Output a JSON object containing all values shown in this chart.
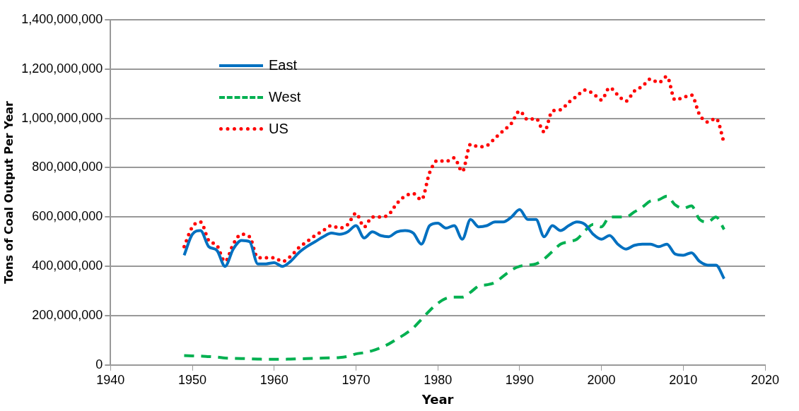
{
  "chart_data": {
    "type": "line",
    "xlabel": "Year",
    "ylabel": "Tons of Coal Output Per Year",
    "x": [
      1949,
      1950,
      1951,
      1952,
      1953,
      1954,
      1955,
      1956,
      1957,
      1958,
      1959,
      1960,
      1961,
      1962,
      1963,
      1964,
      1965,
      1966,
      1967,
      1968,
      1969,
      1970,
      1971,
      1972,
      1973,
      1974,
      1975,
      1976,
      1977,
      1978,
      1979,
      1980,
      1981,
      1982,
      1983,
      1984,
      1985,
      1986,
      1987,
      1988,
      1989,
      1990,
      1991,
      1992,
      1993,
      1994,
      1995,
      1996,
      1997,
      1998,
      1999,
      2000,
      2001,
      2002,
      2003,
      2004,
      2005,
      2006,
      2007,
      2008,
      2009,
      2010,
      2011,
      2012,
      2013,
      2014,
      2015
    ],
    "series": [
      {
        "name": "East",
        "color": "#0070c0",
        "line_style": "solid",
        "values": [
          445000000,
          530000000,
          545000000,
          480000000,
          465000000,
          400000000,
          470000000,
          505000000,
          500000000,
          410000000,
          410000000,
          415000000,
          400000000,
          420000000,
          455000000,
          480000000,
          500000000,
          520000000,
          535000000,
          530000000,
          540000000,
          565000000,
          515000000,
          540000000,
          525000000,
          520000000,
          540000000,
          545000000,
          535000000,
          490000000,
          565000000,
          575000000,
          555000000,
          565000000,
          510000000,
          590000000,
          560000000,
          565000000,
          580000000,
          580000000,
          600000000,
          630000000,
          590000000,
          590000000,
          520000000,
          565000000,
          545000000,
          565000000,
          580000000,
          570000000,
          530000000,
          510000000,
          525000000,
          490000000,
          470000000,
          485000000,
          490000000,
          490000000,
          480000000,
          490000000,
          450000000,
          445000000,
          455000000,
          420000000,
          405000000,
          405000000,
          350000000
        ]
      },
      {
        "name": "West",
        "color": "#00b050",
        "line_style": "dashed",
        "values": [
          38000000,
          37000000,
          36000000,
          34000000,
          32000000,
          28000000,
          27000000,
          26000000,
          25000000,
          24000000,
          23000000,
          23000000,
          23000000,
          24000000,
          25000000,
          26000000,
          27000000,
          28000000,
          29000000,
          30000000,
          35000000,
          45000000,
          50000000,
          58000000,
          70000000,
          85000000,
          105000000,
          125000000,
          150000000,
          185000000,
          220000000,
          250000000,
          270000000,
          275000000,
          275000000,
          295000000,
          320000000,
          325000000,
          335000000,
          360000000,
          385000000,
          400000000,
          405000000,
          410000000,
          430000000,
          460000000,
          490000000,
          500000000,
          510000000,
          545000000,
          570000000,
          560000000,
          600000000,
          600000000,
          600000000,
          620000000,
          640000000,
          665000000,
          670000000,
          685000000,
          650000000,
          635000000,
          645000000,
          590000000,
          580000000,
          600000000,
          550000000
        ]
      },
      {
        "name": "US",
        "color": "#ff0000",
        "line_style": "dotted",
        "values": [
          480000000,
          560000000,
          580000000,
          505000000,
          485000000,
          420000000,
          490000000,
          530000000,
          520000000,
          435000000,
          435000000,
          435000000,
          420000000,
          440000000,
          475000000,
          500000000,
          525000000,
          545000000,
          565000000,
          555000000,
          570000000,
          615000000,
          560000000,
          600000000,
          600000000,
          610000000,
          655000000,
          685000000,
          695000000,
          670000000,
          780000000,
          830000000,
          825000000,
          840000000,
          785000000,
          895000000,
          885000000,
          890000000,
          920000000,
          950000000,
          980000000,
          1030000000,
          995000000,
          1000000000,
          945000000,
          1030000000,
          1035000000,
          1065000000,
          1090000000,
          1115000000,
          1100000000,
          1075000000,
          1125000000,
          1095000000,
          1070000000,
          1110000000,
          1130000000,
          1160000000,
          1145000000,
          1170000000,
          1075000000,
          1085000000,
          1095000000,
          1015000000,
          985000000,
          1000000000,
          900000000
        ]
      }
    ],
    "xlim": [
      1940,
      2020
    ],
    "xticks": [
      1940,
      1950,
      1960,
      1970,
      1980,
      1990,
      2000,
      2010,
      2020
    ],
    "ylim": [
      0,
      1400000000
    ],
    "yticks": [
      {
        "value": 0,
        "label": "0"
      },
      {
        "value": 200000000,
        "label": "200,000,000"
      },
      {
        "value": 400000000,
        "label": "400,000,000"
      },
      {
        "value": 600000000,
        "label": "600,000,000"
      },
      {
        "value": 800000000,
        "label": "800,000,000"
      },
      {
        "value": 1000000000,
        "label": "1,000,000,000"
      },
      {
        "value": 1200000000,
        "label": "1,200,000,000"
      },
      {
        "value": 1400000000,
        "label": "1,400,000,000"
      }
    ],
    "grid": "y",
    "legend": "top left",
    "marker": "none"
  }
}
